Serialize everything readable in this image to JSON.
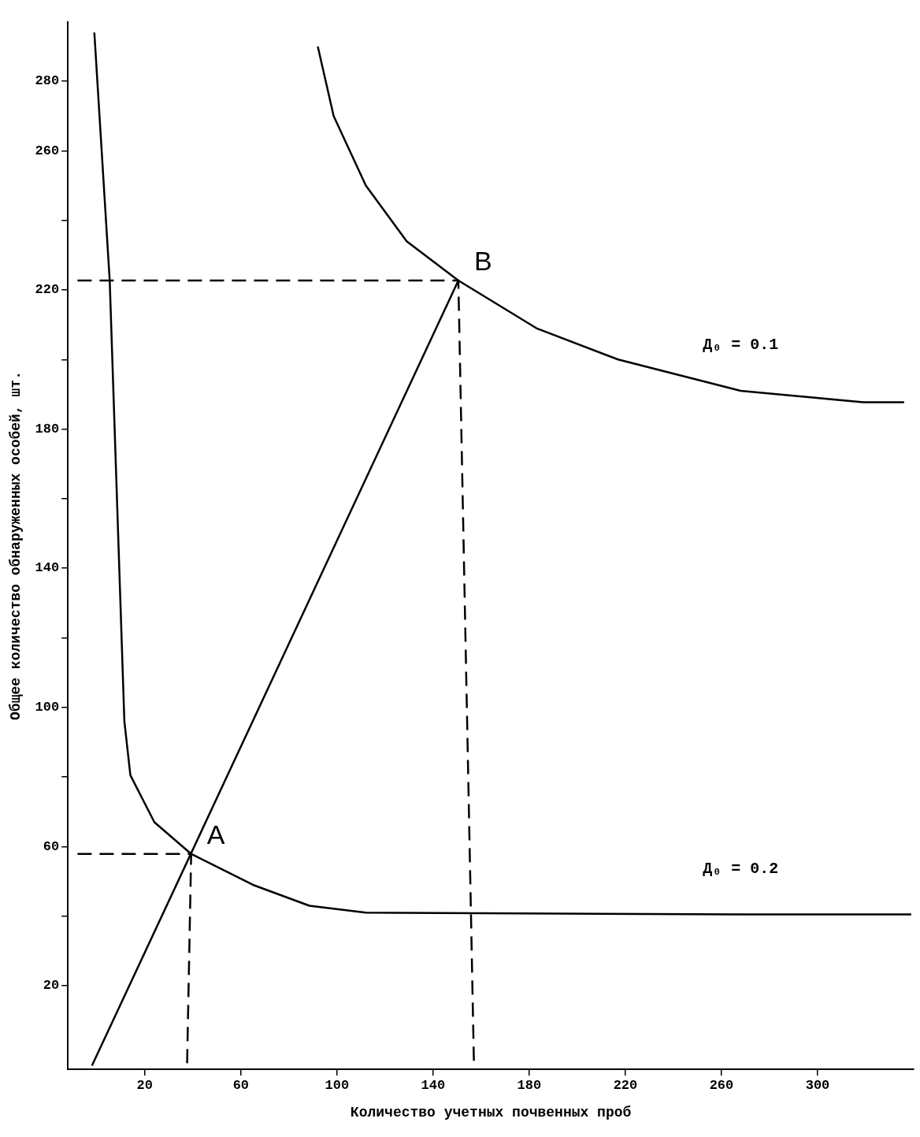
{
  "chart_data": {
    "type": "line",
    "xlabel": "Количество учетных почвенных проб",
    "ylabel": "Общее количество обнаруженных особей, шт.",
    "xlim": [
      -12,
      340
    ],
    "ylim": [
      -4,
      297
    ],
    "xticks": [
      20,
      60,
      100,
      140,
      180,
      220,
      260,
      300
    ],
    "yticks": [
      20,
      {
        "value": 40,
        "label": null
      },
      60,
      {
        "value": 80,
        "label": null
      },
      100,
      {
        "value": 120,
        "label": null
      },
      140,
      {
        "value": 160,
        "label": null
      },
      180,
      {
        "value": 200,
        "label": null
      },
      220,
      {
        "value": 240,
        "label": null
      },
      260,
      280
    ],
    "grid": false,
    "legend": false,
    "marker": "none",
    "series": [
      {
        "color": "#000000",
        "line_style": "solid",
        "x": [
          -1,
          5.4,
          11.5,
          14,
          24,
          39.3,
          65,
          88.5,
          112,
          268,
          339
        ],
        "values": [
          294,
          222.7,
          96,
          80.5,
          67,
          57.9,
          49,
          43,
          41,
          40.5,
          40.5
        ]
      },
      {
        "color": "#000000",
        "line_style": "solid",
        "x": [
          92,
          98.6,
          112,
          129,
          150.5,
          183,
          217,
          268,
          319,
          336
        ],
        "values": [
          290,
          270,
          250,
          234,
          222.7,
          209,
          200,
          191,
          187.7,
          187.7
        ]
      },
      {
        "color": "#000000",
        "line_style": "solid",
        "x": [
          -2,
          150.5
        ],
        "values": [
          -3,
          222.7
        ]
      },
      {
        "color": "#000000",
        "line_style": "dashed",
        "x": [
          -8,
          150.5,
          157
        ],
        "values": [
          222.7,
          222.7,
          -3
        ]
      },
      {
        "color": "#000000",
        "line_style": "dashed",
        "x": [
          -8,
          39.3,
          37.6
        ],
        "values": [
          57.9,
          57.9,
          -3
        ]
      }
    ],
    "annotations": [
      {
        "text": "A",
        "x": 39.3,
        "y": 57.9
      },
      {
        "text": "B",
        "x": 150.5,
        "y": 222.7
      },
      {
        "text": "Д₀ = 0.1",
        "x": 268,
        "y": 191
      },
      {
        "text": "Д₀ = 0.2",
        "x": 268,
        "y": 40.5
      }
    ]
  }
}
